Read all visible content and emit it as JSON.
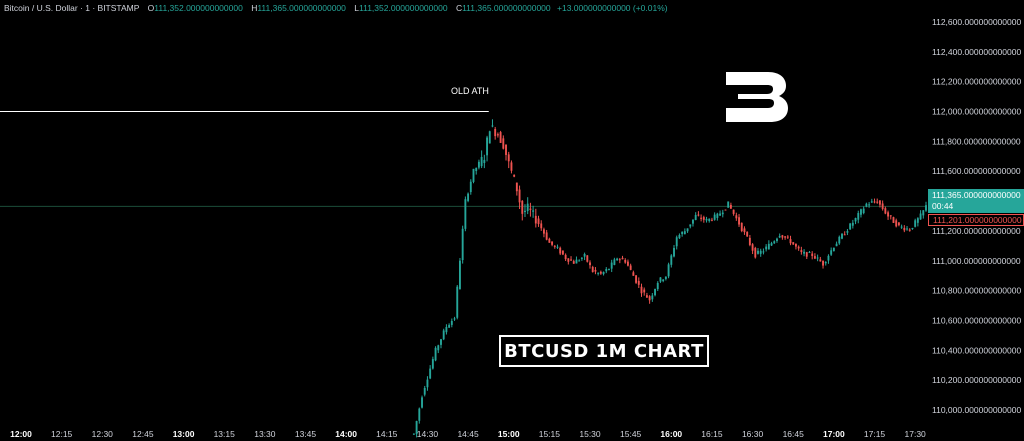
{
  "header": {
    "symbol": "Bitcoin / U.S. Dollar · 1 · BITSTAMP",
    "o_label": "O",
    "o_value": "111,352.000000000000",
    "h_label": "H",
    "h_value": "111,365.000000000000",
    "l_label": "L",
    "l_value": "111,352.000000000000",
    "c_label": "C",
    "c_value": "111,365.000000000000",
    "change": "+13.000000000000 (+0.01%)"
  },
  "annotations": {
    "ath_label": "OLD ATH",
    "banner": "BTCUSD 1M CHART"
  },
  "price_tag": {
    "price": "111,365.000000000000",
    "countdown": "00:44",
    "secondary": "111,201.000000000000"
  },
  "logo": {
    "icon": "brand-b-logo-icon"
  },
  "colors": {
    "up": "#26a69a",
    "down": "#ef5350",
    "background": "#000000",
    "text": "#d1d4dc"
  },
  "chart_data": {
    "type": "candlestick",
    "title": "BTCUSD 1M CHART",
    "x_ticks": [
      "12:00",
      "12:15",
      "12:30",
      "12:45",
      "13:00",
      "13:15",
      "13:30",
      "13:45",
      "14:00",
      "14:15",
      "14:30",
      "14:45",
      "15:00",
      "15:15",
      "15:30",
      "15:45",
      "16:00",
      "16:15",
      "16:30",
      "16:45",
      "17:00",
      "17:15",
      "17:30"
    ],
    "x_ticks_bold": [
      "12:00",
      "13:00",
      "14:00",
      "15:00",
      "16:00",
      "17:00"
    ],
    "y_ticks": [
      "112,600.000000000000",
      "112,400.000000000000",
      "112,200.000000000000",
      "112,000.000000000000",
      "111,800.000000000000",
      "111,600.000000000000",
      "111,400.000000000000",
      "111,200.000000000000",
      "111,000.000000000000",
      "110,800.000000000000",
      "110,600.000000000000",
      "110,400.000000000000",
      "110,200.000000000000",
      "110,000.000000000000"
    ],
    "ylim": [
      109860,
      112680
    ],
    "xlim": [
      "12:00",
      "17:34"
    ],
    "old_ath": 112000,
    "current_price": 111365,
    "path_times": [
      "14:25",
      "14:28",
      "14:33",
      "14:37",
      "14:40",
      "14:44",
      "14:47",
      "14:51",
      "14:53",
      "14:56",
      "14:58",
      "15:00",
      "15:03",
      "15:05",
      "15:07",
      "15:10",
      "15:12",
      "15:15",
      "15:18",
      "15:21",
      "15:24",
      "15:28",
      "15:31",
      "15:34",
      "15:37",
      "15:40",
      "15:43",
      "15:46",
      "15:49",
      "15:52",
      "15:55",
      "15:58",
      "16:02",
      "16:05",
      "16:09",
      "16:13",
      "16:17",
      "16:21",
      "16:25",
      "16:28",
      "16:31",
      "16:34",
      "16:37",
      "16:40",
      "16:44",
      "16:48",
      "16:52",
      "16:56",
      "17:00",
      "17:04",
      "17:08",
      "17:12",
      "17:16",
      "17:20",
      "17:24",
      "17:28",
      "17:32",
      "17:34"
    ],
    "path_prices": [
      109840,
      110100,
      110400,
      110560,
      110620,
      111400,
      111600,
      111700,
      111900,
      111850,
      111780,
      111650,
      111480,
      111320,
      111350,
      111280,
      111220,
      111120,
      111080,
      111020,
      110990,
      111030,
      110930,
      110910,
      110950,
      111020,
      111000,
      110900,
      110800,
      110740,
      110860,
      110900,
      111160,
      111200,
      111300,
      111270,
      111300,
      111380,
      111250,
      111150,
      111040,
      111070,
      111120,
      111180,
      111130,
      111050,
      111040,
      110980,
      111100,
      111190,
      111280,
      111380,
      111400,
      111300,
      111230,
      111210,
      111300,
      111365
    ]
  }
}
